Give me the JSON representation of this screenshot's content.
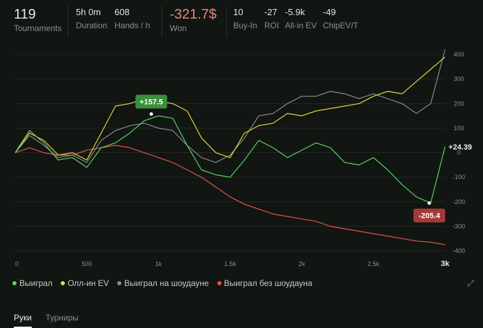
{
  "stats": {
    "tournaments": {
      "value": "119",
      "label": "Tournaments"
    },
    "duration": {
      "value": "5h 0m",
      "label": "Duration"
    },
    "hands_per_hour": {
      "value": "608",
      "label": "Hands / h"
    },
    "won": {
      "value": "-321.7$",
      "label": "Won"
    },
    "buy_in": {
      "value": "10",
      "label": "Buy-In"
    },
    "roi": {
      "value": "-27",
      "label": "ROI"
    },
    "allin_ev": {
      "value": "-5.9k",
      "label": "All-in EV"
    },
    "chip_ev": {
      "value": "-49",
      "label": "ChipEV/T"
    }
  },
  "colors": {
    "green": "#5fd45f",
    "yellow": "#e3d83a",
    "gray": "#8b8b8b",
    "red": "#e5534b",
    "won": "#e8857e"
  },
  "chart_data": {
    "type": "line",
    "xlabel": "",
    "ylabel": "",
    "xlim": [
      0,
      3000
    ],
    "ylim": [
      -400,
      420
    ],
    "x_ticks": [
      {
        "value": 0,
        "label": "0"
      },
      {
        "value": 500,
        "label": "500"
      },
      {
        "value": 1000,
        "label": "1k"
      },
      {
        "value": 1500,
        "label": "1.5k"
      },
      {
        "value": 2000,
        "label": "2k"
      },
      {
        "value": 2500,
        "label": "2.5k"
      },
      {
        "value": 3000,
        "label": "3k"
      }
    ],
    "y_ticks": [
      400,
      300,
      200,
      100,
      0,
      -100,
      -200,
      -300,
      -400
    ],
    "x": [
      0,
      100,
      200,
      300,
      400,
      500,
      600,
      700,
      800,
      900,
      1000,
      1100,
      1200,
      1300,
      1400,
      1500,
      1600,
      1700,
      1800,
      1900,
      2000,
      2100,
      2200,
      2300,
      2400,
      2500,
      2600,
      2700,
      2800,
      2900,
      3000
    ],
    "series": [
      {
        "name": "Выиграл",
        "color": "#5fd45f",
        "values": [
          0,
          90,
          40,
          -30,
          -20,
          -60,
          20,
          40,
          80,
          130,
          150,
          140,
          30,
          -70,
          -90,
          -100,
          -30,
          50,
          20,
          -20,
          10,
          40,
          20,
          -40,
          -50,
          -20,
          -70,
          -130,
          -180,
          -205,
          24.39
        ]
      },
      {
        "name": "Олл-ин EV",
        "color": "#e3d83a",
        "values": [
          0,
          80,
          50,
          -10,
          0,
          -30,
          80,
          190,
          200,
          220,
          210,
          200,
          170,
          60,
          0,
          -20,
          80,
          110,
          120,
          160,
          150,
          170,
          180,
          190,
          200,
          230,
          250,
          240,
          290,
          340,
          390
        ]
      },
      {
        "name": "Выиграл на шоудауне",
        "color": "#8b8b8b",
        "values": [
          0,
          70,
          30,
          -20,
          -10,
          -40,
          50,
          90,
          110,
          120,
          100,
          90,
          30,
          -20,
          -40,
          -10,
          60,
          150,
          160,
          200,
          230,
          230,
          250,
          240,
          220,
          240,
          220,
          200,
          160,
          200,
          420
        ]
      },
      {
        "name": "Выиграл без шоудауна",
        "color": "#e5534b",
        "values": [
          0,
          20,
          0,
          -10,
          -10,
          10,
          20,
          30,
          20,
          0,
          -20,
          -40,
          -70,
          -100,
          -140,
          -180,
          -210,
          -230,
          -250,
          -260,
          -270,
          -280,
          -300,
          -310,
          -320,
          -330,
          -340,
          -350,
          -360,
          -365,
          -375
        ]
      }
    ],
    "annotations": [
      {
        "x": 950,
        "y": 157.5,
        "label": "+157.5",
        "color": "#3a8f3a"
      },
      {
        "x": 2890,
        "y": -205.4,
        "label": "-205.4",
        "color": "#a43a38"
      }
    ],
    "end_label": {
      "value": 24.39,
      "label": "+24.39"
    },
    "legend_position": "bottom-left",
    "grid": true
  },
  "legend": [
    {
      "label": "Выиграл",
      "color": "#5fd45f"
    },
    {
      "label": "Олл-ин EV",
      "color": "#e3d83a"
    },
    {
      "label": "Выиграл на шоудауне",
      "color": "#8b8b8b"
    },
    {
      "label": "Выиграл без шоудауна",
      "color": "#e5534b"
    }
  ],
  "tabs": [
    {
      "label": "Руки",
      "active": true
    },
    {
      "label": "Турниры",
      "active": false
    }
  ]
}
